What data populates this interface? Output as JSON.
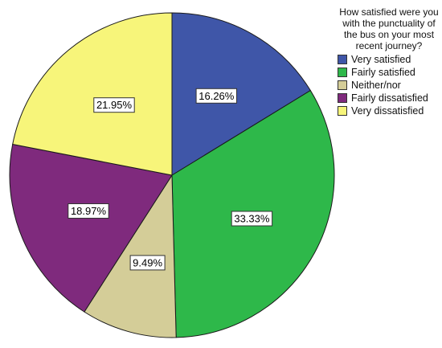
{
  "chart_data": {
    "type": "pie",
    "legend_title": "How satisfied were you with the punctuality of the bus on your most recent journey?",
    "legend_position": "top-right",
    "slices": [
      {
        "label": "Very satisfied",
        "value": 16.26,
        "display": "16.26%",
        "color": "#3f56a8"
      },
      {
        "label": "Fairly satisfied",
        "value": 33.33,
        "display": "33.33%",
        "color": "#2eb84a"
      },
      {
        "label": "Neither/nor",
        "value": 9.49,
        "display": "9.49%",
        "color": "#d4cd98"
      },
      {
        "label": "Fairly dissatisfied",
        "value": 18.97,
        "display": "18.97%",
        "color": "#7f2a7d"
      },
      {
        "label": "Very dissatisfied",
        "value": 21.95,
        "display": "21.95%",
        "color": "#f7f57a"
      }
    ]
  }
}
